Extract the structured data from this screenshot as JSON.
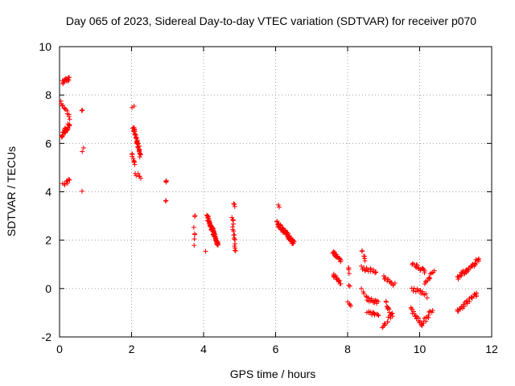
{
  "chart_data": {
    "type": "scatter",
    "title": "Day 065 of 2023, Sidereal Day-to-day VTEC variation (SDTVAR) for receiver p070",
    "xlabel": "GPS time / hours",
    "ylabel": "SDTVAR / TECUs",
    "xlim": [
      0,
      12
    ],
    "ylim": [
      -2,
      10
    ],
    "x_ticks": [
      "0",
      "2",
      "4",
      "6",
      "8",
      "10",
      "12"
    ],
    "y_ticks": [
      "-2",
      "0",
      "2",
      "4",
      "6",
      "8",
      "10"
    ],
    "grid": true,
    "marker": "+",
    "marker_color": "#ff0000",
    "clusters": [
      {
        "x0": 0.08,
        "x1": 0.28,
        "y0": 8.55,
        "y1": 8.65,
        "n": 14
      },
      {
        "x0": 0.04,
        "x1": 0.3,
        "y0": 7.75,
        "y1": 7.05,
        "n": 12
      },
      {
        "x0": 0.06,
        "x1": 0.28,
        "y0": 6.3,
        "y1": 6.8,
        "n": 24
      },
      {
        "x0": 0.1,
        "x1": 0.28,
        "y0": 4.3,
        "y1": 4.5,
        "n": 8
      },
      {
        "x0": 0.63,
        "x1": 0.65,
        "y0": 7.35,
        "y1": 7.45,
        "n": 2
      },
      {
        "x0": 0.63,
        "x1": 0.65,
        "y0": 5.6,
        "y1": 5.75,
        "n": 2
      },
      {
        "x0": 0.64,
        "x1": 0.64,
        "y0": 4.1,
        "y1": 4.1,
        "n": 1
      },
      {
        "x0": 2.03,
        "x1": 2.05,
        "y0": 7.5,
        "y1": 7.55,
        "n": 2
      },
      {
        "x0": 2.05,
        "x1": 2.25,
        "y0": 6.7,
        "y1": 5.5,
        "n": 40
      },
      {
        "x0": 2.0,
        "x1": 2.1,
        "y0": 5.6,
        "y1": 5.1,
        "n": 8
      },
      {
        "x0": 2.12,
        "x1": 2.25,
        "y0": 4.75,
        "y1": 4.6,
        "n": 6
      },
      {
        "x0": 2.95,
        "x1": 2.97,
        "y0": 4.5,
        "y1": 4.45,
        "n": 3
      },
      {
        "x0": 2.95,
        "x1": 2.97,
        "y0": 3.65,
        "y1": 3.55,
        "n": 2
      },
      {
        "x0": 3.75,
        "x1": 3.75,
        "y0": 3.1,
        "y1": 3.05,
        "n": 2
      },
      {
        "x0": 3.74,
        "x1": 3.76,
        "y0": 2.5,
        "y1": 2.0,
        "n": 4
      },
      {
        "x0": 3.75,
        "x1": 3.75,
        "y0": 1.75,
        "y1": 1.75,
        "n": 1
      },
      {
        "x0": 4.05,
        "x1": 4.05,
        "y0": 1.45,
        "y1": 1.45,
        "n": 1
      },
      {
        "x0": 4.1,
        "x1": 4.4,
        "y0": 3.0,
        "y1": 1.8,
        "n": 70
      },
      {
        "x0": 4.82,
        "x1": 4.86,
        "y0": 3.5,
        "y1": 3.45,
        "n": 3
      },
      {
        "x0": 4.8,
        "x1": 4.88,
        "y0": 3.0,
        "y1": 1.5,
        "n": 18
      },
      {
        "x0": 6.08,
        "x1": 6.1,
        "y0": 3.4,
        "y1": 3.3,
        "n": 2
      },
      {
        "x0": 6.05,
        "x1": 6.5,
        "y0": 2.7,
        "y1": 1.9,
        "n": 70
      },
      {
        "x0": 7.6,
        "x1": 7.8,
        "y0": 1.55,
        "y1": 1.1,
        "n": 18
      },
      {
        "x0": 7.6,
        "x1": 7.82,
        "y0": 0.55,
        "y1": 0.25,
        "n": 16
      },
      {
        "x0": 8.02,
        "x1": 8.06,
        "y0": 0.9,
        "y1": 0.65,
        "n": 4
      },
      {
        "x0": 8.05,
        "x1": 8.07,
        "y0": 0.15,
        "y1": 0.1,
        "n": 2
      },
      {
        "x0": 8.02,
        "x1": 8.1,
        "y0": -0.55,
        "y1": -0.8,
        "n": 4
      },
      {
        "x0": 8.4,
        "x1": 8.5,
        "y0": 1.55,
        "y1": 1.2,
        "n": 6
      },
      {
        "x0": 8.4,
        "x1": 8.8,
        "y0": 0.85,
        "y1": 0.7,
        "n": 16
      },
      {
        "x0": 8.4,
        "x1": 8.45,
        "y0": -0.05,
        "y1": -0.2,
        "n": 3
      },
      {
        "x0": 8.5,
        "x1": 8.85,
        "y0": -0.4,
        "y1": -0.6,
        "n": 16
      },
      {
        "x0": 8.55,
        "x1": 8.85,
        "y0": -0.95,
        "y1": -1.1,
        "n": 12
      },
      {
        "x0": 9.0,
        "x1": 9.3,
        "y0": 0.45,
        "y1": 0.2,
        "n": 14
      },
      {
        "x0": 9.05,
        "x1": 9.25,
        "y0": -0.6,
        "y1": -1.1,
        "n": 12
      },
      {
        "x0": 8.95,
        "x1": 9.2,
        "y0": -1.55,
        "y1": -1.2,
        "n": 10
      },
      {
        "x0": 9.8,
        "x1": 10.15,
        "y0": 1.05,
        "y1": 0.7,
        "n": 16
      },
      {
        "x0": 9.8,
        "x1": 10.2,
        "y0": 0.0,
        "y1": -0.3,
        "n": 14
      },
      {
        "x0": 9.75,
        "x1": 10.05,
        "y0": -0.8,
        "y1": -1.5,
        "n": 16
      },
      {
        "x0": 10.05,
        "x1": 10.35,
        "y0": -1.5,
        "y1": -0.9,
        "n": 14
      },
      {
        "x0": 10.15,
        "x1": 10.4,
        "y0": 0.2,
        "y1": 0.7,
        "n": 12
      },
      {
        "x0": 11.05,
        "x1": 11.65,
        "y0": 0.45,
        "y1": 1.2,
        "n": 34
      },
      {
        "x0": 11.05,
        "x1": 11.6,
        "y0": -0.9,
        "y1": -0.2,
        "n": 26
      }
    ]
  }
}
